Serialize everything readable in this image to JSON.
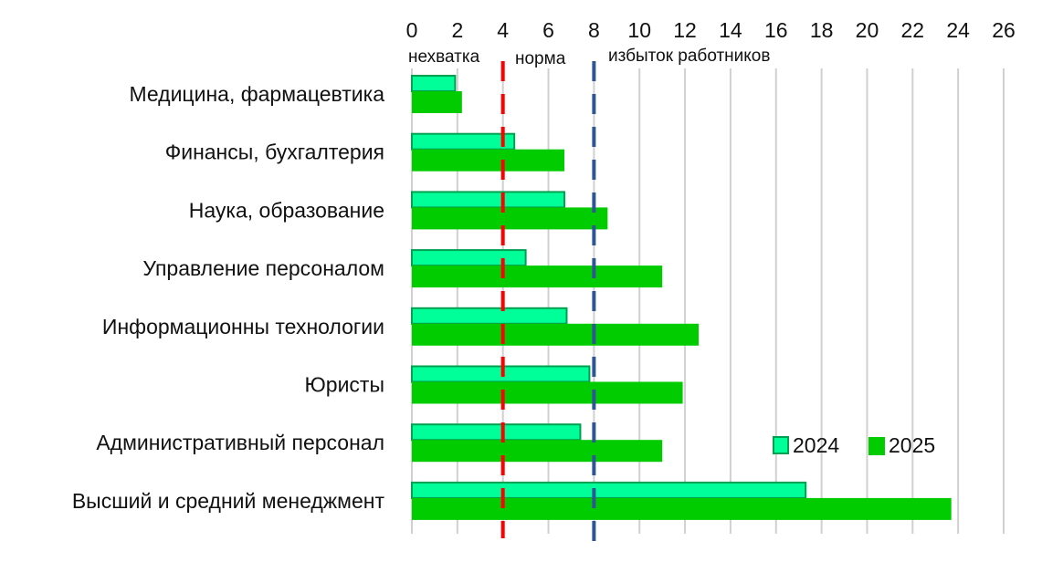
{
  "chart_data": {
    "type": "bar",
    "orientation": "horizontal",
    "categories": [
      "Медицина, фармацевтика",
      "Финансы, бухгалтерия",
      "Наука, образование",
      "Управление персоналом",
      "Информационны технологии",
      "Юристы",
      "Административный персонал",
      "Высший и средний менеджмент"
    ],
    "series": [
      {
        "name": "2024",
        "color": "#00FF99",
        "border": "#00A050",
        "values": [
          1.9,
          4.5,
          6.7,
          5.0,
          6.8,
          7.8,
          7.4,
          17.3
        ]
      },
      {
        "name": "2025",
        "color": "#00CC00",
        "values": [
          2.2,
          6.7,
          8.6,
          11.0,
          12.6,
          11.9,
          11.0,
          23.7
        ]
      }
    ],
    "xlim": [
      0,
      26
    ],
    "xticks": [
      "0",
      "2",
      "4",
      "6",
      "8",
      "10",
      "12",
      "14",
      "16",
      "18",
      "20",
      "22",
      "24",
      "26"
    ],
    "xaxis_position": "top",
    "grid": true,
    "legend": "bottom-right",
    "reference_lines": [
      {
        "value": 4,
        "color": "#FF0000",
        "style": "dashed"
      },
      {
        "value": 8,
        "color": "#2F5597",
        "style": "dashed"
      }
    ],
    "annotations": [
      "нехватка",
      "норма",
      "избыток работников"
    ]
  }
}
